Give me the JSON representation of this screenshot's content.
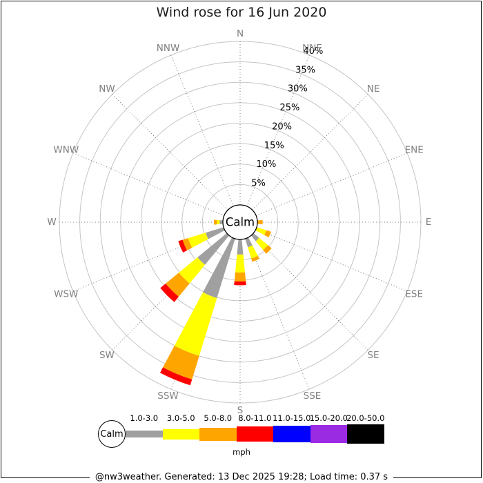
{
  "title": "Wind rose for 16 Jun 2020",
  "footer": "@nw3weather. Generated: 13 Dec 2025 19:28; Load time: 0.37 s",
  "legend": {
    "calm_label": "Calm",
    "unit_label": "mph"
  },
  "chart_data": {
    "type": "windrose",
    "title": "Wind rose for 16 Jun 2020",
    "center_label": "Calm",
    "unit": "mph",
    "ring_step_pct": 5,
    "ring_max_pct": 40,
    "ring_labels": [
      "5%",
      "10%",
      "15%",
      "20%",
      "25%",
      "30%",
      "35%",
      "40%"
    ],
    "compass_labels": [
      "N",
      "NNE",
      "NE",
      "ENE",
      "E",
      "ESE",
      "SE",
      "SSE",
      "S",
      "SSW",
      "SW",
      "WSW",
      "W",
      "WNW",
      "NW",
      "NNW"
    ],
    "speed_bins": [
      {
        "label": "1.0-3.0",
        "color": "#a0a0a0"
      },
      {
        "label": "3.0-5.0",
        "color": "#ffff00"
      },
      {
        "label": "5.0-8.0",
        "color": "#ffa500"
      },
      {
        "label": "8.0-11.0",
        "color": "#ff0000"
      },
      {
        "label": "11.0-15.0",
        "color": "#0000ff"
      },
      {
        "label": "15.0-20.0",
        "color": "#9b2be2"
      },
      {
        "label": "20.0-50.0",
        "color": "#000000"
      }
    ],
    "frequencies_pct_by_direction": {
      "N": [
        0,
        0,
        0,
        0,
        0,
        0,
        0
      ],
      "NNE": [
        0,
        0,
        0,
        0,
        0,
        0,
        0
      ],
      "NE": [
        0,
        0,
        0,
        0,
        0,
        0,
        0
      ],
      "ENE": [
        0,
        0,
        0,
        0,
        0,
        0,
        0
      ],
      "E": [
        0,
        0,
        1.3,
        0,
        0,
        0,
        0
      ],
      "ESE": [
        0,
        2.5,
        1.2,
        0,
        0,
        0,
        0
      ],
      "SE": [
        1.8,
        2.8,
        1.2,
        0,
        0,
        0,
        0
      ],
      "SSE": [
        2.2,
        2.9,
        0.8,
        0,
        0,
        0,
        0
      ],
      "S": [
        3.7,
        4.4,
        2.2,
        0.9,
        0,
        0,
        0
      ],
      "SSW": [
        15.2,
        14.8,
        6.0,
        1.5,
        0,
        0,
        0
      ],
      "SW": [
        9.3,
        5.9,
        4.2,
        1.7,
        0,
        0,
        0
      ],
      "WSW": [
        4.6,
        4.5,
        1.4,
        1.1,
        0,
        0,
        0
      ],
      "W": [
        0.8,
        0.7,
        0.7,
        0,
        0,
        0,
        0
      ],
      "WNW": [
        0,
        0,
        0,
        0,
        0,
        0,
        0
      ],
      "NW": [
        0,
        0,
        0,
        0,
        0,
        0,
        0
      ],
      "NNW": [
        0,
        0,
        0,
        0,
        0,
        0,
        0
      ]
    },
    "style": {
      "grid_ring_color": "#c4c4c4",
      "grid_spoke_color": "#777777",
      "compass_label_color": "#808080",
      "ring_label_color": "#000000"
    }
  }
}
